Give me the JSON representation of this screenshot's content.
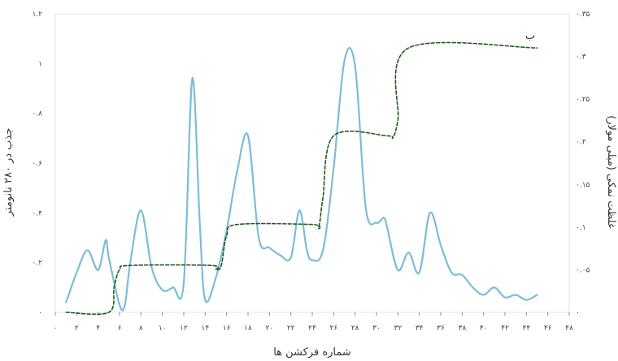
{
  "chart_data": {
    "type": "line",
    "panel_label": "ب",
    "xlabel": "شماره فرکشن ها",
    "ylabel_left": "جذب در ۲۸۰ نانومتر",
    "ylabel_right": "غلظت نمکی (میلی مولار)",
    "xlim": [
      0,
      48
    ],
    "ylim_left": [
      0,
      1.2
    ],
    "ylim_right": [
      0,
      0.35
    ],
    "x_tick_values": [
      0,
      2,
      4,
      6,
      8,
      10,
      12,
      14,
      16,
      18,
      20,
      22,
      24,
      26,
      28,
      30,
      32,
      34,
      36,
      38,
      40,
      42,
      44,
      46,
      48
    ],
    "x_tick_labels": [
      "۰",
      "۲",
      "۴",
      "۶",
      "۸",
      "۱۰",
      "۱۲",
      "۱۴",
      "۱۶",
      "۱۸",
      "۲۰",
      "۲۲",
      "۲۴",
      "۲۶",
      "۲۸",
      "۳۰",
      "۳۲",
      "۳۴",
      "۳۶",
      "۳۸",
      "۴۰",
      "۴۲",
      "۴۴",
      "۴۶",
      "۴۸"
    ],
    "y_left_tick_values": [
      0,
      0.2,
      0.4,
      0.6,
      0.8,
      1.0,
      1.2
    ],
    "y_left_tick_labels": [
      "۰",
      "۰.۲",
      "۰.۴",
      "۰.۶",
      "۰.۸",
      "۱",
      "۱.۲"
    ],
    "y_right_tick_values": [
      0,
      0.05,
      0.1,
      0.15,
      0.2,
      0.25,
      0.3,
      0.35
    ],
    "y_right_tick_labels": [
      "۰",
      "۰.۰۵",
      "۰.۱",
      "۰.۱۵",
      "۰.۲",
      "۰.۲۵",
      "۰.۳",
      "۰.۳۵"
    ],
    "grid": false,
    "series": [
      {
        "axis": "left",
        "color": "#7dbcd8",
        "style": "solid",
        "x": [
          1,
          2,
          3,
          4,
          4.7,
          5,
          6,
          6.5,
          7,
          8,
          9,
          10,
          11,
          12,
          12.8,
          13.5,
          14,
          15,
          16,
          17,
          18,
          19,
          20,
          21,
          22,
          22.8,
          23.5,
          24,
          25,
          26,
          27,
          28,
          29,
          30,
          30.7,
          31,
          32,
          33,
          34,
          35,
          36,
          37,
          38,
          39,
          40,
          41,
          42,
          43,
          44,
          45
        ],
        "y": [
          0.04,
          0.16,
          0.25,
          0.17,
          0.29,
          0.22,
          0.03,
          0.03,
          0.2,
          0.41,
          0.18,
          0.09,
          0.1,
          0.12,
          0.94,
          0.35,
          0.05,
          0.14,
          0.33,
          0.57,
          0.71,
          0.3,
          0.26,
          0.23,
          0.22,
          0.41,
          0.25,
          0.21,
          0.25,
          0.58,
          1.01,
          0.99,
          0.42,
          0.36,
          0.38,
          0.34,
          0.17,
          0.24,
          0.16,
          0.4,
          0.27,
          0.16,
          0.15,
          0.1,
          0.07,
          0.1,
          0.06,
          0.07,
          0.05,
          0.07
        ]
      },
      {
        "axis": "right",
        "color": "#1f5a1a",
        "style": "dashed",
        "x": [
          1,
          5,
          5.5,
          6,
          7,
          14.5,
          15,
          15.5,
          16,
          17,
          24,
          24.6,
          25,
          26,
          31,
          31.5,
          32,
          33,
          45
        ],
        "y": [
          0,
          0,
          0.03,
          0.05,
          0.055,
          0.055,
          0.05,
          0.055,
          0.09,
          0.103,
          0.103,
          0.1,
          0.135,
          0.207,
          0.207,
          0.205,
          0.225,
          0.31,
          0.31
        ]
      }
    ]
  }
}
